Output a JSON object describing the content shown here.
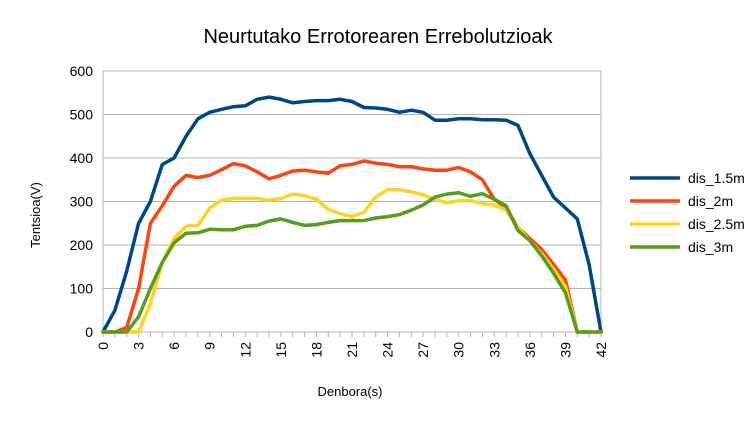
{
  "chart_data": {
    "type": "line",
    "title": "Neurtutako Errotorearen Errebolutzioak",
    "xlabel": "Denbora(s)",
    "ylabel": "Tentsioa(V)",
    "xlim": [
      0,
      42
    ],
    "ylim": [
      0,
      600
    ],
    "x_ticks": [
      0,
      3,
      6,
      9,
      12,
      15,
      18,
      21,
      24,
      27,
      30,
      33,
      36,
      39,
      42
    ],
    "y_ticks": [
      0,
      100,
      200,
      300,
      400,
      500,
      600
    ],
    "grid": "horizontal",
    "legend_position": "right",
    "x": [
      0,
      1,
      2,
      3,
      4,
      5,
      6,
      7,
      8,
      9,
      10,
      11,
      12,
      13,
      14,
      15,
      16,
      17,
      18,
      19,
      20,
      21,
      22,
      23,
      24,
      25,
      26,
      27,
      28,
      29,
      30,
      31,
      32,
      33,
      34,
      35,
      36,
      37,
      38,
      39,
      40,
      41,
      42
    ],
    "series": [
      {
        "name": "dis_1.5m",
        "color": "#004586",
        "values": [
          0,
          50,
          140,
          250,
          300,
          385,
          400,
          450,
          490,
          505,
          512,
          518,
          520,
          535,
          540,
          535,
          527,
          530,
          532,
          532,
          535,
          530,
          516,
          515,
          512,
          505,
          510,
          505,
          487,
          487,
          490,
          490,
          488,
          488,
          487,
          475,
          410,
          360,
          310,
          285,
          260,
          155,
          0
        ]
      },
      {
        "name": "dis_2m",
        "color": "#ff420e",
        "values": [
          0,
          0,
          10,
          100,
          250,
          290,
          335,
          360,
          355,
          360,
          373,
          387,
          382,
          368,
          352,
          360,
          370,
          372,
          368,
          365,
          382,
          385,
          393,
          388,
          385,
          380,
          380,
          375,
          372,
          372,
          378,
          368,
          350,
          305,
          285,
          240,
          215,
          190,
          155,
          120,
          0,
          0,
          0
        ]
      },
      {
        "name": "dis_2.5m",
        "color": "#ffd320",
        "values": [
          0,
          0,
          0,
          0,
          65,
          160,
          215,
          243,
          245,
          285,
          303,
          307,
          307,
          307,
          303,
          307,
          317,
          313,
          305,
          282,
          272,
          265,
          275,
          310,
          327,
          327,
          322,
          315,
          305,
          297,
          302,
          302,
          295,
          292,
          280,
          240,
          210,
          180,
          145,
          105,
          0,
          0,
          0
        ]
      },
      {
        "name": "dis_3m",
        "color": "#579d1c",
        "values": [
          0,
          0,
          0,
          35,
          100,
          160,
          205,
          227,
          228,
          236,
          235,
          235,
          243,
          245,
          255,
          260,
          252,
          245,
          247,
          252,
          256,
          256,
          256,
          262,
          265,
          270,
          280,
          292,
          310,
          317,
          320,
          312,
          318,
          305,
          290,
          233,
          210,
          175,
          135,
          90,
          0,
          0,
          0
        ]
      }
    ]
  }
}
